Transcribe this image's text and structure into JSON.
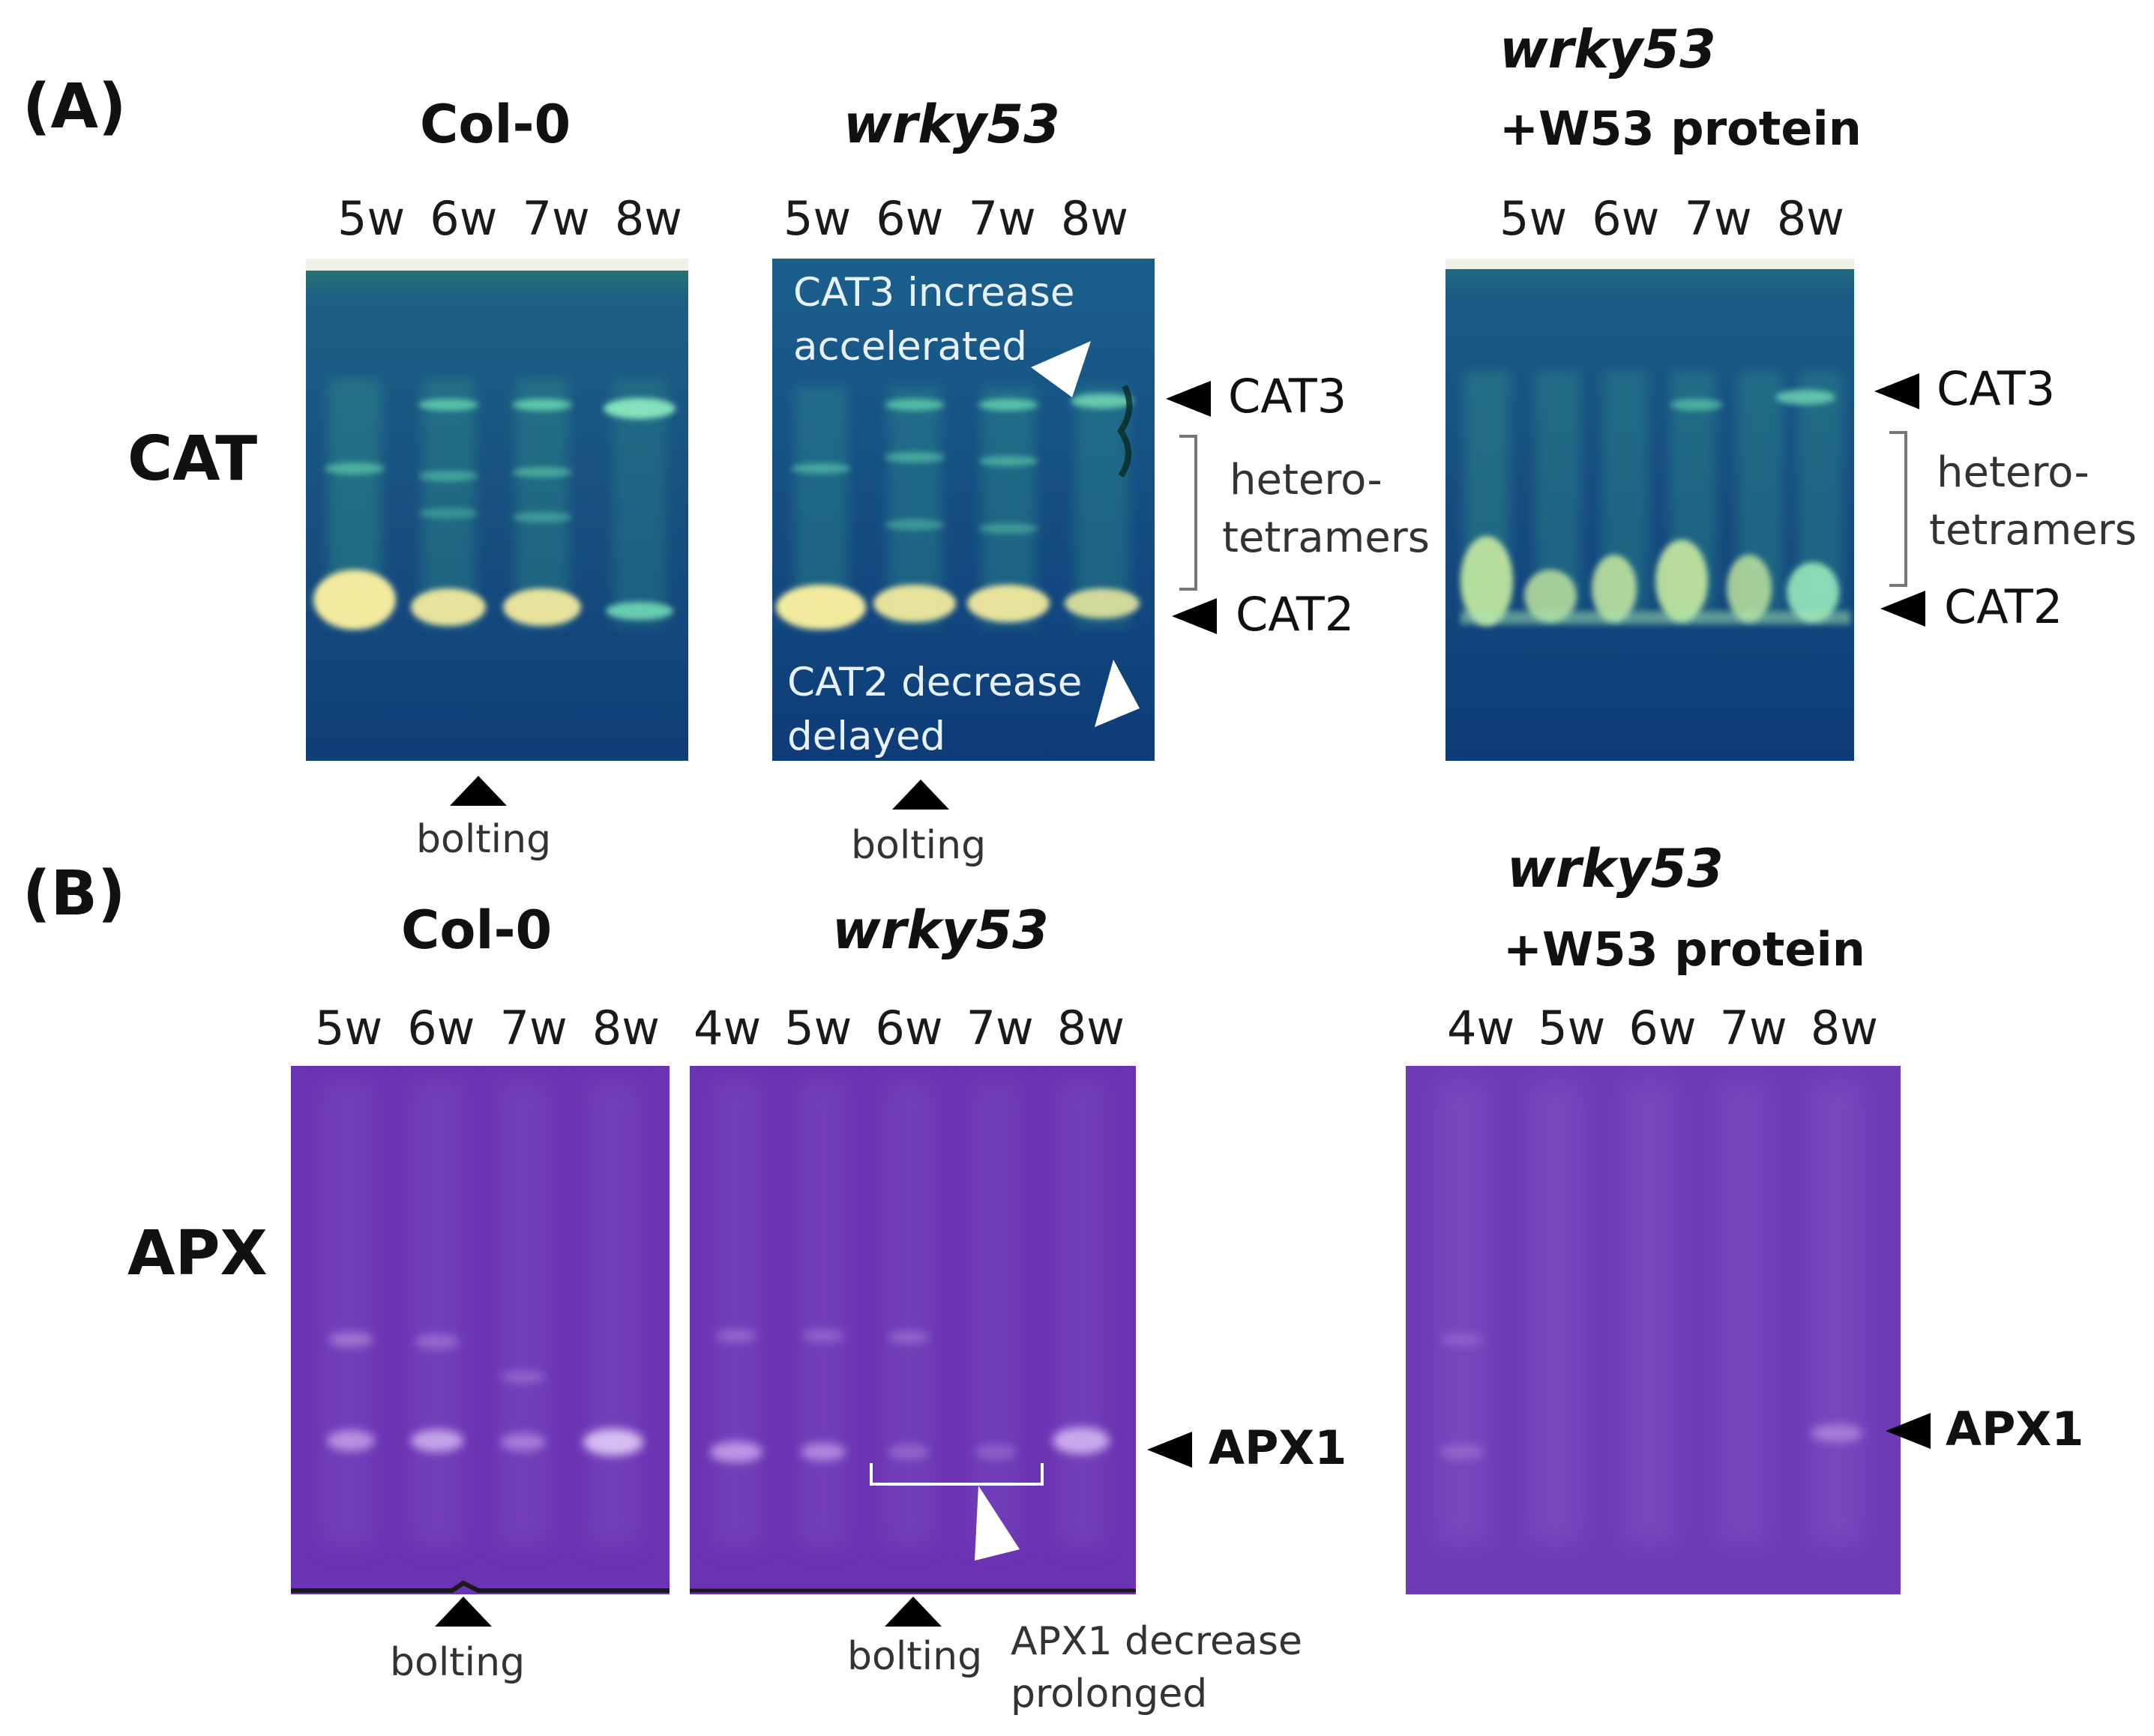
{
  "panelA": {
    "letter": "(A)",
    "enzyme": "CAT",
    "genotypes": {
      "col0": "Col-0",
      "wrky53": "wrky53",
      "w53_line1": "wrky53",
      "w53_line2": "+W53 protein"
    },
    "lanes": [
      "5w",
      "6w",
      "7w",
      "8w"
    ],
    "annotations": {
      "cat3_increase_line1": "CAT3 increase",
      "cat3_increase_line2": "accelerated",
      "cat2_decrease_line1": "CAT2 decrease",
      "cat2_decrease_line2": "delayed"
    },
    "band_labels": {
      "cat3": "CAT3",
      "hetero_line1": "hetero-",
      "hetero_line2": "tetramers",
      "cat2": "CAT2"
    },
    "bolting": "bolting"
  },
  "panelB": {
    "letter": "(B)",
    "enzyme": "APX",
    "genotypes": {
      "col0": "Col-0",
      "wrky53": "wrky53",
      "w53_line1": "wrky53",
      "w53_line2": "+W53 protein"
    },
    "lanes_col0": [
      "5w",
      "6w",
      "7w",
      "8w"
    ],
    "lanes_wrky53": [
      "4w",
      "5w",
      "6w",
      "7w",
      "8w"
    ],
    "lanes_w53": [
      "4w",
      "5w",
      "6w",
      "7w",
      "8w"
    ],
    "band_labels": {
      "apx1": "APX1"
    },
    "annotations": {
      "apx1_line1": "APX1 decrease",
      "apx1_line2": "prolonged"
    },
    "bolting": "bolting"
  },
  "colors": {
    "cat_gel": "#0f4f80",
    "cat_band": "#f0e89a",
    "apx_gel": "#6a32b0"
  }
}
